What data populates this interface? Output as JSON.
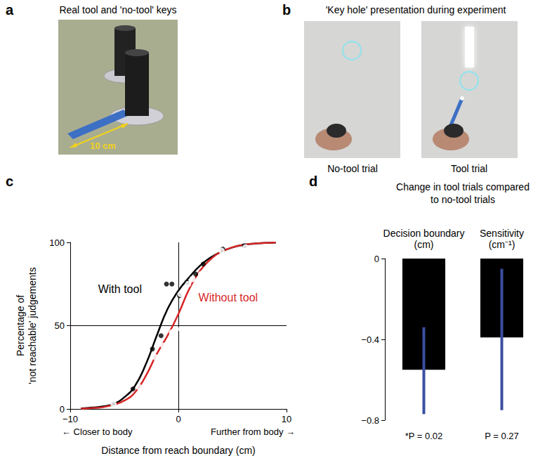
{
  "panels": [
    {
      "label": "a",
      "title": "Real tool and 'no-tool' keys",
      "annotation": "10 cm"
    },
    {
      "label": "b",
      "title": "'Key hole' presentation during experiment",
      "captions": [
        "No-tool trial",
        "Tool trial"
      ]
    }
  ],
  "chart_data": [
    {
      "label": "c",
      "type": "scatter",
      "x_label": "Distance from reach boundary (cm)",
      "y_label": "Percentage of\n'not reachable' judgements",
      "annotations": [
        "← Closer to body",
        "Further from body →"
      ],
      "xlim": [
        -10,
        10
      ],
      "xticks": [
        {
          "value": -10,
          "label": "−10"
        },
        0,
        10
      ],
      "ylim": [
        0,
        100
      ],
      "yticks": [
        0,
        50,
        100
      ],
      "grid": true,
      "series": [
        {
          "name": "With tool",
          "color": "#000000",
          "marker": "filled",
          "x": [
            -6,
            -4.2,
            -2.4,
            -1.6,
            -1.1,
            -0.6,
            0.1,
            0.8,
            1.6,
            2.3,
            4.1,
            6.1
          ],
          "values": [
            3,
            12,
            36,
            44,
            75,
            75,
            68,
            76,
            81,
            87,
            96,
            98
          ],
          "fit": {
            "x": [
              -9,
              -8,
              -7,
              -6,
              -5,
              -4,
              -3,
              -2,
              -1,
              0,
              1,
              2,
              3,
              4,
              5,
              6,
              7,
              8,
              9
            ],
            "values": [
              0.3,
              0.8,
              1.5,
              3,
              7,
              14,
              27,
              44,
              60,
              71,
              79,
              86,
              91,
              94.5,
              97,
              98.5,
              99.3,
              99.7,
              99.9
            ]
          }
        },
        {
          "name": "Without tool",
          "color": "#d62728",
          "marker": "open",
          "x": [
            -6,
            -3.6,
            -2.1,
            -1.4,
            -0.6,
            -0.2,
            0.2,
            0.9,
            1.3,
            2.1,
            4,
            6.2
          ],
          "values": [
            3,
            13,
            31,
            38,
            46,
            48,
            69,
            75,
            78,
            81,
            95,
            97
          ],
          "fit": {
            "x": [
              -9,
              -8,
              -7,
              -6,
              -5,
              -4,
              -3,
              -2,
              -1,
              0,
              1,
              2,
              3,
              4,
              5,
              6,
              7,
              8,
              9
            ],
            "values": [
              0.2,
              0.5,
              1,
              2.5,
              5,
              10,
              20,
              33,
              44,
              57,
              72,
              83,
              90,
              94.5,
              97,
              98.5,
              99.3,
              99.7,
              99.9
            ]
          }
        }
      ]
    },
    {
      "label": "d",
      "type": "bar",
      "title": "Change in tool trials compared\nto no-tool trials",
      "categories": [
        "Decision boundary\n(cm)",
        "Sensitivity\n(cm⁻¹)"
      ],
      "values": [
        -0.55,
        -0.39
      ],
      "color": "#000000",
      "error_bars": {
        "color": "#3a4fa0",
        "ranges": [
          [
            -0.34,
            -0.77
          ],
          [
            -0.05,
            -0.75
          ]
        ]
      },
      "annotations": [
        "*P = 0.02",
        "P = 0.27"
      ],
      "ylim": [
        -0.8,
        0
      ],
      "yticks": [
        {
          "value": -0.8,
          "label": "−0.8"
        },
        {
          "value": -0.4,
          "label": "−0.4"
        },
        0
      ]
    }
  ]
}
